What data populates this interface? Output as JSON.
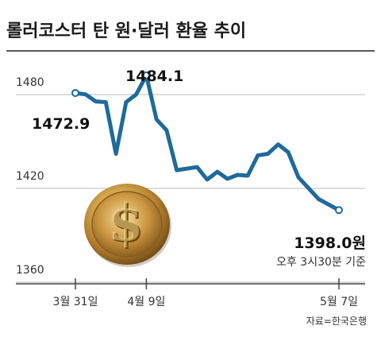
{
  "chart_data": {
    "type": "line",
    "title": "롤러코스터 탄 원·달러 환율 추이",
    "y_ticks": [
      1480,
      1420,
      1360
    ],
    "ylim": [
      1360,
      1500
    ],
    "x_ticks": [
      {
        "index": 0,
        "label": "3월 31일"
      },
      {
        "index": 7,
        "label": "4월 9일"
      },
      {
        "index": 26,
        "label": "5월 7일"
      }
    ],
    "series": [
      {
        "values": [
          1472.9,
          1472.0,
          1467.5,
          1467.0,
          1434.0,
          1467.0,
          1472.0,
          1484.1,
          1456.0,
          1449.0,
          1423.5,
          1424.5,
          1425.5,
          1417.5,
          1422.5,
          1418.0,
          1420.5,
          1420.0,
          1433.0,
          1434.0,
          1440.0,
          1435.0,
          1419.0,
          1405.0,
          1398.0
        ],
        "x_index": [
          0,
          1,
          2,
          3,
          4,
          5,
          6,
          7,
          8,
          9,
          10,
          11,
          12,
          13,
          14,
          15,
          16,
          17,
          18,
          19,
          20,
          21,
          22,
          24,
          26
        ]
      }
    ],
    "annotations": {
      "start": "1472.9",
      "peak": "1484.1",
      "end": "1398.0원",
      "end_time": "오후 3시30분 기준"
    },
    "color": "#1e6a9b",
    "grid": true
  },
  "source": "자료=한국은행",
  "icons": {
    "coin": "gold-dollar-coin-icon"
  }
}
